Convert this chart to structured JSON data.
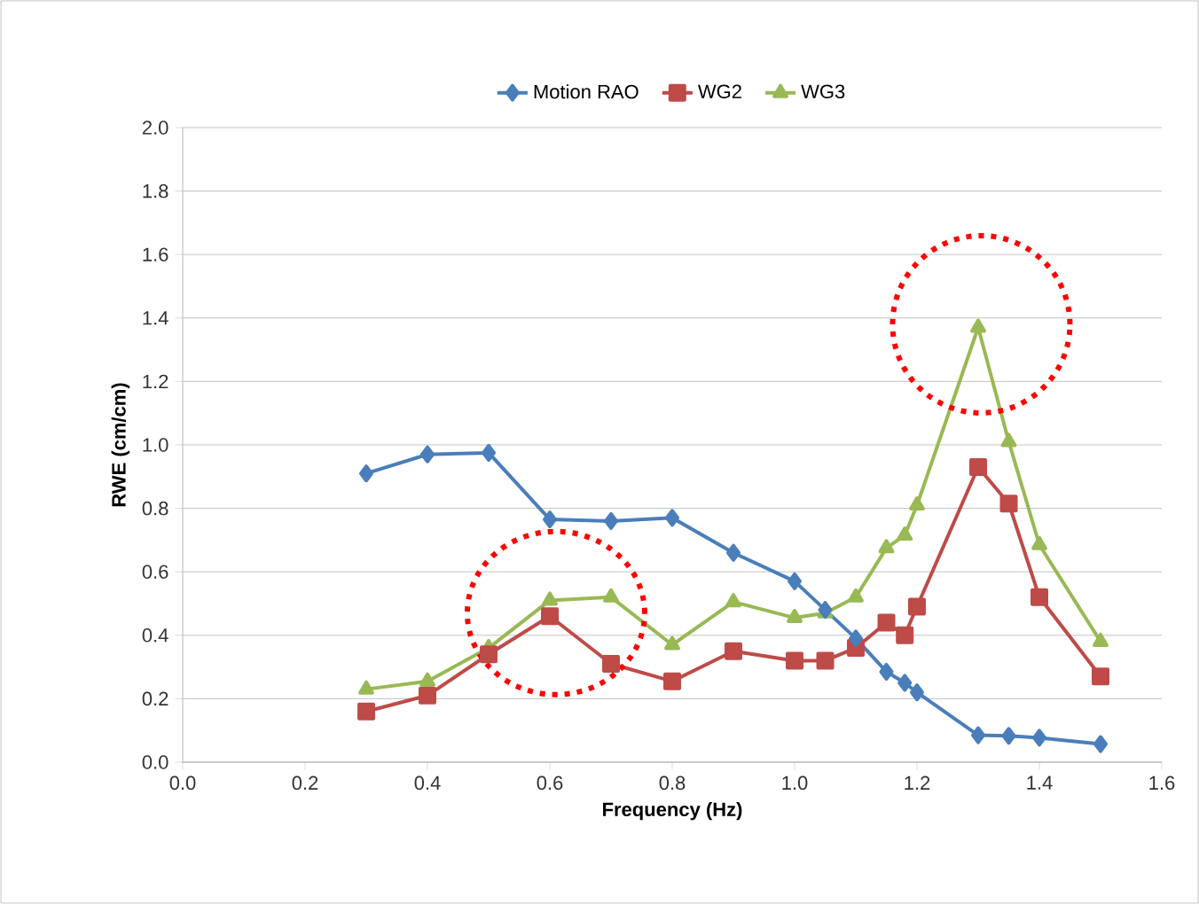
{
  "chart_data": {
    "type": "line",
    "xlabel": "Frequency (Hz)",
    "ylabel": "RWE (cm/cm)",
    "xlim": [
      0,
      1.6
    ],
    "ylim": [
      0,
      2
    ],
    "xticks": [
      {
        "value": 0,
        "label": "0.0"
      },
      {
        "value": 0.2,
        "label": "0.2"
      },
      {
        "value": 0.4,
        "label": "0.4"
      },
      {
        "value": 0.6,
        "label": "0.6"
      },
      {
        "value": 0.8,
        "label": "0.8"
      },
      {
        "value": 1.0,
        "label": "1.0"
      },
      {
        "value": 1.2,
        "label": "1.2"
      },
      {
        "value": 1.4,
        "label": "1.4"
      },
      {
        "value": 1.6,
        "label": "1.6"
      }
    ],
    "yticks": [
      {
        "value": 0,
        "label": "0.0"
      },
      {
        "value": 0.2,
        "label": "0.2"
      },
      {
        "value": 0.4,
        "label": "0.4"
      },
      {
        "value": 0.6,
        "label": "0.6"
      },
      {
        "value": 0.8,
        "label": "0.8"
      },
      {
        "value": 1.0,
        "label": "1.0"
      },
      {
        "value": 1.2,
        "label": "1.2"
      },
      {
        "value": 1.4,
        "label": "1.4"
      },
      {
        "value": 1.6,
        "label": "1.6"
      },
      {
        "value": 1.8,
        "label": "1.8"
      },
      {
        "value": 2.0,
        "label": "2.0"
      }
    ],
    "grid": "y",
    "legend": "top",
    "line_style": "solid",
    "series": [
      {
        "name": "Motion RAO",
        "color": "#4a7ebb",
        "marker": "diamond",
        "x": [
          0.3,
          0.4,
          0.5,
          0.6,
          0.7,
          0.8,
          0.9,
          1.0,
          1.05,
          1.1,
          1.15,
          1.18,
          1.2,
          1.3,
          1.35,
          1.4,
          1.5
        ],
        "values": [
          0.91,
          0.97,
          0.975,
          0.765,
          0.76,
          0.77,
          0.66,
          0.57,
          0.48,
          0.39,
          0.285,
          0.25,
          0.22,
          0.085,
          0.083,
          0.077,
          0.057
        ]
      },
      {
        "name": "WG2",
        "color": "#be4b48",
        "marker": "square",
        "x": [
          0.3,
          0.4,
          0.5,
          0.6,
          0.7,
          0.8,
          0.9,
          1.0,
          1.05,
          1.1,
          1.15,
          1.18,
          1.2,
          1.3,
          1.35,
          1.4,
          1.5
        ],
        "values": [
          0.16,
          0.21,
          0.34,
          0.46,
          0.31,
          0.255,
          0.35,
          0.32,
          0.32,
          0.36,
          0.44,
          0.4,
          0.49,
          0.93,
          0.815,
          0.52,
          0.27
        ]
      },
      {
        "name": "WG3",
        "color": "#98b954",
        "marker": "triangle",
        "x": [
          0.3,
          0.4,
          0.5,
          0.6,
          0.7,
          0.8,
          0.9,
          1.0,
          1.05,
          1.1,
          1.15,
          1.18,
          1.2,
          1.3,
          1.35,
          1.4,
          1.5
        ],
        "values": [
          0.23,
          0.255,
          0.36,
          0.51,
          0.52,
          0.37,
          0.505,
          0.455,
          0.47,
          0.52,
          0.675,
          0.715,
          0.81,
          1.37,
          1.01,
          0.685,
          0.38
        ]
      }
    ]
  }
}
